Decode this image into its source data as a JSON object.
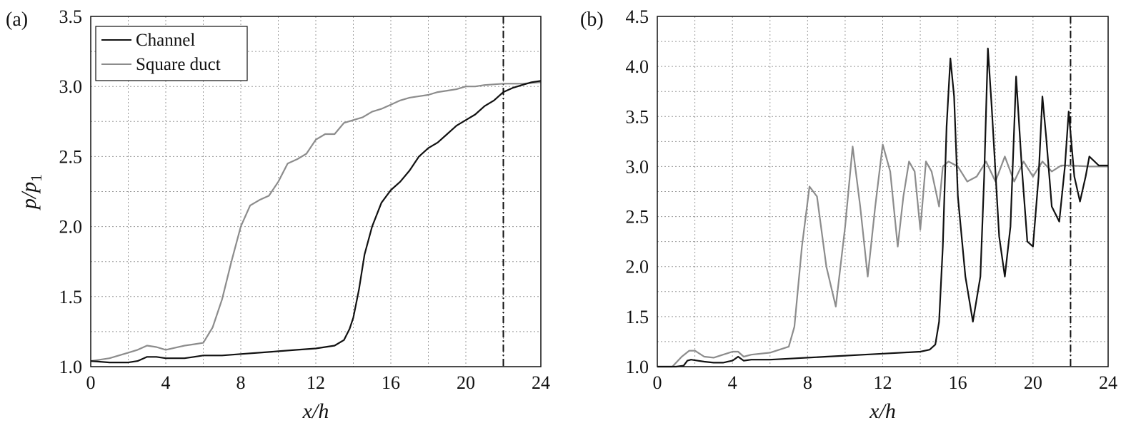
{
  "colors": {
    "channel": "#111111",
    "square_duct": "#8c8c8c",
    "grid": "#9a9a9a"
  },
  "chart_data": [
    {
      "type": "line",
      "panel_label": "(a)",
      "xlabel": "x/h",
      "ylabel": "p/p1",
      "xlim": [
        0,
        24
      ],
      "ylim": [
        1.0,
        3.5
      ],
      "xticks": [
        "0",
        "4",
        "8",
        "12",
        "16",
        "20",
        "24"
      ],
      "yticks": [
        "1.0",
        "1.5",
        "2.0",
        "2.5",
        "3.0",
        "3.5"
      ],
      "grid": true,
      "legend_position": "top-left",
      "vline_x": 22,
      "series": [
        {
          "name": "Channel",
          "color": "#111111",
          "x": [
            0,
            1,
            2,
            2.5,
            3,
            3.5,
            4,
            5,
            5.5,
            6,
            6.5,
            7,
            8,
            9,
            10,
            11,
            12,
            12.5,
            13,
            13.5,
            13.8,
            14,
            14.3,
            14.6,
            15,
            15.5,
            16,
            16.5,
            17,
            17.5,
            18,
            18.5,
            19,
            19.5,
            20,
            20.5,
            21,
            21.5,
            22,
            22.5,
            23,
            23.5,
            24
          ],
          "y": [
            1.04,
            1.03,
            1.03,
            1.04,
            1.07,
            1.07,
            1.06,
            1.06,
            1.07,
            1.08,
            1.08,
            1.08,
            1.09,
            1.1,
            1.11,
            1.12,
            1.13,
            1.14,
            1.15,
            1.19,
            1.27,
            1.35,
            1.55,
            1.8,
            2.0,
            2.17,
            2.26,
            2.32,
            2.4,
            2.5,
            2.56,
            2.6,
            2.66,
            2.72,
            2.76,
            2.8,
            2.86,
            2.9,
            2.96,
            2.99,
            3.01,
            3.03,
            3.04
          ]
        },
        {
          "name": "Square duct",
          "color": "#8c8c8c",
          "x": [
            0,
            0.5,
            1,
            2,
            2.5,
            3,
            3.5,
            4,
            5,
            5.5,
            6,
            6.5,
            7,
            7.5,
            8,
            8.5,
            9,
            9.5,
            10,
            10.5,
            11,
            11.5,
            12,
            12.5,
            13,
            13.5,
            14,
            14.5,
            15,
            15.5,
            16,
            16.5,
            17,
            17.5,
            18,
            18.5,
            19,
            19.5,
            20,
            20.5,
            21,
            22,
            23,
            24
          ],
          "y": [
            1.04,
            1.05,
            1.06,
            1.1,
            1.12,
            1.15,
            1.14,
            1.12,
            1.15,
            1.16,
            1.17,
            1.28,
            1.48,
            1.75,
            2.0,
            2.15,
            2.19,
            2.22,
            2.32,
            2.45,
            2.48,
            2.52,
            2.62,
            2.66,
            2.66,
            2.74,
            2.76,
            2.78,
            2.82,
            2.84,
            2.87,
            2.9,
            2.92,
            2.93,
            2.94,
            2.96,
            2.97,
            2.98,
            3.0,
            3.0,
            3.01,
            3.02,
            3.02,
            3.03
          ]
        }
      ]
    },
    {
      "type": "line",
      "panel_label": "(b)",
      "xlabel": "x/h",
      "xlim": [
        0,
        24
      ],
      "ylim": [
        1.0,
        4.5
      ],
      "xticks": [
        "0",
        "4",
        "8",
        "12",
        "16",
        "20",
        "24"
      ],
      "yticks": [
        "1.0",
        "1.5",
        "2.0",
        "2.5",
        "3.0",
        "3.5",
        "4.0",
        "4.5"
      ],
      "grid": true,
      "vline_x": 22,
      "series": [
        {
          "name": "Channel",
          "color": "#111111",
          "x": [
            0,
            1,
            1.4,
            1.6,
            1.8,
            2.5,
            3,
            3.5,
            4,
            4.3,
            4.6,
            5,
            6,
            7,
            8,
            9,
            10,
            11,
            12,
            13,
            14,
            14.5,
            14.8,
            15,
            15.2,
            15.4,
            15.6,
            15.8,
            16,
            16.4,
            16.8,
            17.2,
            17.4,
            17.6,
            17.8,
            18.2,
            18.5,
            18.8,
            19.1,
            19.4,
            19.7,
            20,
            20.3,
            20.5,
            20.7,
            21,
            21.4,
            21.7,
            21.9,
            22.2,
            22.5,
            22.8,
            23,
            23.5,
            24
          ],
          "y": [
            1.0,
            1.0,
            1.01,
            1.06,
            1.07,
            1.05,
            1.04,
            1.04,
            1.06,
            1.1,
            1.06,
            1.07,
            1.07,
            1.08,
            1.09,
            1.1,
            1.11,
            1.12,
            1.13,
            1.14,
            1.15,
            1.17,
            1.22,
            1.45,
            2.2,
            3.4,
            4.08,
            3.7,
            2.7,
            1.9,
            1.45,
            1.9,
            2.9,
            4.18,
            3.6,
            2.3,
            1.9,
            2.4,
            3.9,
            3.0,
            2.25,
            2.2,
            2.9,
            3.7,
            3.3,
            2.6,
            2.45,
            3.0,
            3.55,
            2.9,
            2.65,
            2.9,
            3.1,
            3.01,
            3.01
          ]
        },
        {
          "name": "Square duct",
          "color": "#8c8c8c",
          "x": [
            0,
            0.8,
            1.3,
            1.7,
            2,
            2.5,
            3,
            3.5,
            4,
            4.3,
            4.6,
            5,
            6,
            7,
            7.3,
            7.7,
            8.1,
            8.5,
            9,
            9.5,
            10,
            10.4,
            10.8,
            11.2,
            11.6,
            12,
            12.4,
            12.8,
            13.1,
            13.4,
            13.7,
            14,
            14.3,
            14.6,
            15,
            15.2,
            15.5,
            16,
            16.5,
            17,
            17.5,
            18,
            18.5,
            19,
            19.5,
            20,
            20.5,
            21,
            21.5,
            22,
            23,
            24
          ],
          "y": [
            1.0,
            1.0,
            1.1,
            1.16,
            1.16,
            1.1,
            1.09,
            1.12,
            1.15,
            1.15,
            1.1,
            1.12,
            1.14,
            1.2,
            1.4,
            2.2,
            2.8,
            2.7,
            2.0,
            1.6,
            2.4,
            3.2,
            2.6,
            1.9,
            2.6,
            3.22,
            2.95,
            2.2,
            2.7,
            3.05,
            2.95,
            2.37,
            3.05,
            2.95,
            2.6,
            3.0,
            3.05,
            3.0,
            2.85,
            2.9,
            3.05,
            2.85,
            3.1,
            2.85,
            3.05,
            2.9,
            3.05,
            2.95,
            3.01,
            3.01,
            3.0,
            3.0
          ]
        }
      ]
    }
  ]
}
